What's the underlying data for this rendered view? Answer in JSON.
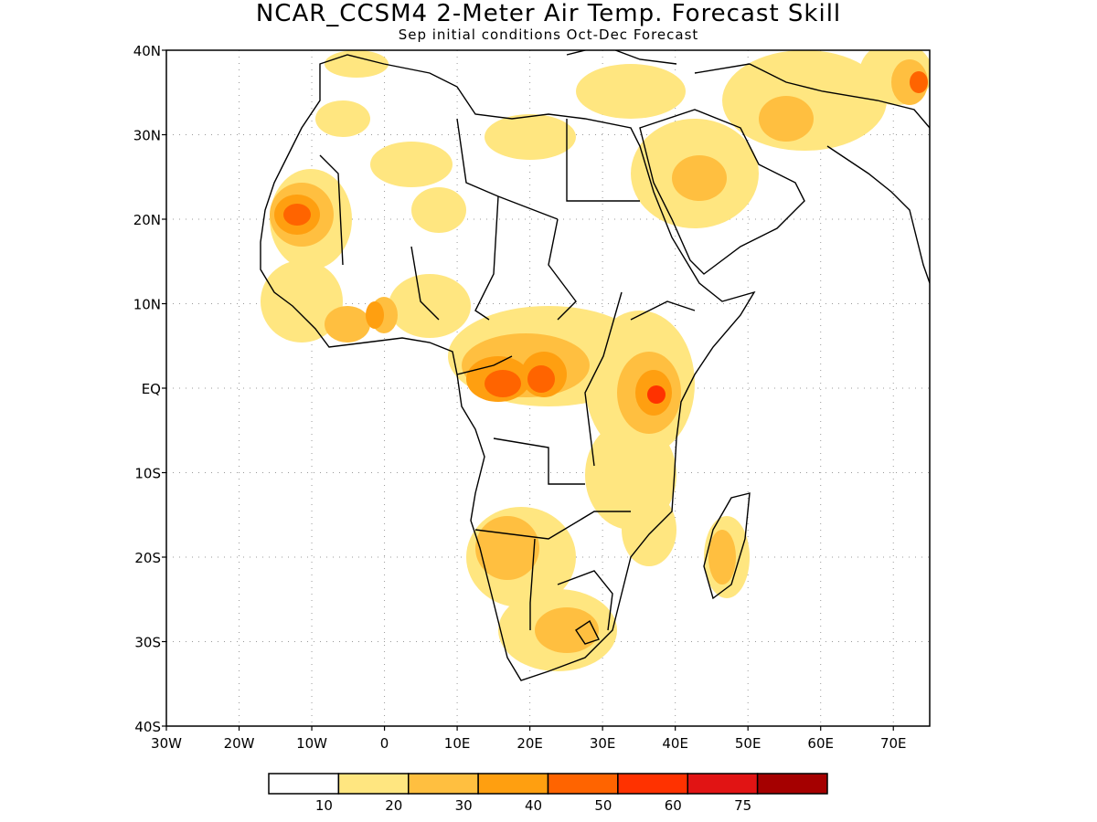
{
  "title": "NCAR_CCSM4 2-Meter Air Temp. Forecast Skill",
  "subtitle": "Sep initial conditions  Oct-Dec Forecast",
  "map": {
    "region": "Africa",
    "lon_range": [
      -30,
      75
    ],
    "lat_range": [
      -40,
      40
    ],
    "lon_ticks": [
      "30W",
      "20W",
      "10W",
      "0",
      "10E",
      "20E",
      "30E",
      "40E",
      "50E",
      "60E",
      "70E"
    ],
    "lat_ticks": [
      "40N",
      "30N",
      "20N",
      "10N",
      "EQ",
      "10S",
      "20S",
      "30S",
      "40S"
    ],
    "grid": "dotted"
  },
  "colorbar": {
    "colors": [
      "#ffffff",
      "#ffe680",
      "#ffbf40",
      "#ff9f10",
      "#ff6400",
      "#ff3200",
      "#e11414",
      "#a50000"
    ],
    "labels": [
      "10",
      "20",
      "30",
      "40",
      "50",
      "60",
      "75"
    ]
  }
}
